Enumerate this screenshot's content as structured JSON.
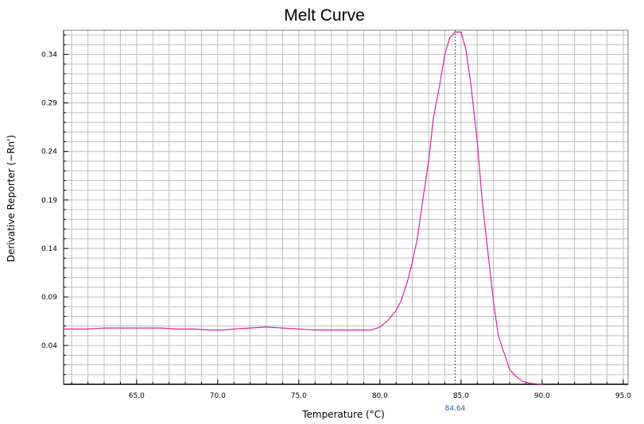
{
  "chart_data": {
    "type": "line",
    "title": "Melt Curve",
    "xlabel": "Temperature (°C)",
    "ylabel": "Derivative Reporter (−Rn')",
    "xlim": [
      60.5,
      95.3
    ],
    "ylim": [
      0.0,
      0.365
    ],
    "x_ticks": [
      65.0,
      70.0,
      75.0,
      80.0,
      85.0,
      90.0,
      95.0
    ],
    "x_tick_labels": [
      "65.0",
      "70.0",
      "75.0",
      "80.0",
      "85.0",
      "90.0",
      "95.0"
    ],
    "y_ticks": [
      0.04,
      0.09,
      0.14,
      0.19,
      0.24,
      0.29,
      0.34
    ],
    "y_tick_labels": [
      "0.04",
      "0.09",
      "0.14",
      "0.19",
      "0.24",
      "0.29",
      "0.34"
    ],
    "grid": true,
    "series": [
      {
        "color": "#e0219e",
        "x": [
          60.5,
          62.0,
          63.0,
          64.5,
          66.5,
          67.5,
          68.5,
          69.5,
          70.3,
          71.0,
          72.0,
          73.0,
          74.0,
          75.0,
          76.0,
          77.0,
          78.0,
          79.0,
          79.5,
          80.0,
          80.5,
          81.0,
          81.3,
          81.7,
          82.0,
          82.3,
          82.6,
          83.0,
          83.3,
          83.7,
          84.0,
          84.3,
          84.64,
          85.0,
          85.3,
          85.6,
          86.0,
          86.3,
          86.7,
          87.0,
          87.3,
          87.7,
          88.0,
          88.4,
          88.8,
          89.3,
          90.0
        ],
        "y": [
          0.057,
          0.057,
          0.058,
          0.058,
          0.058,
          0.057,
          0.057,
          0.056,
          0.056,
          0.057,
          0.058,
          0.059,
          0.058,
          0.057,
          0.056,
          0.056,
          0.056,
          0.056,
          0.056,
          0.059,
          0.066,
          0.076,
          0.086,
          0.106,
          0.126,
          0.15,
          0.185,
          0.23,
          0.275,
          0.31,
          0.34,
          0.357,
          0.363,
          0.363,
          0.345,
          0.31,
          0.25,
          0.19,
          0.13,
          0.085,
          0.05,
          0.03,
          0.015,
          0.008,
          0.003,
          0.001,
          0.0
        ]
      }
    ],
    "marker": {
      "x": 84.64,
      "label": "84.64",
      "color": "#1f5fa8"
    }
  }
}
